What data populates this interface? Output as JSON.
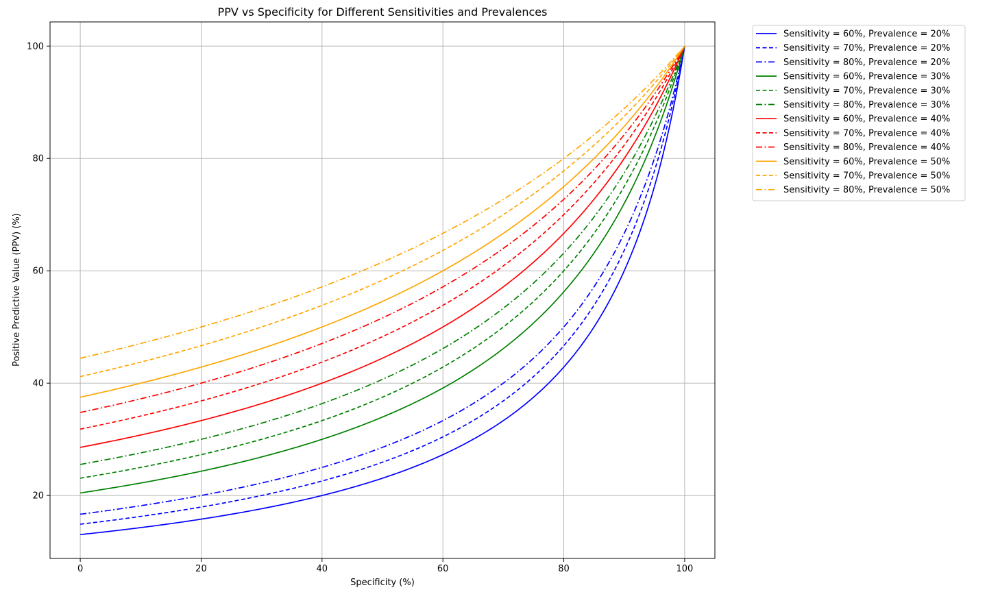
{
  "chart_data": {
    "type": "line",
    "title": "PPV vs Specificity for Different Sensitivities and Prevalences",
    "xlabel": "Specificity (%)",
    "ylabel": "Positive Predictive Value (PPV) (%)",
    "xlim": [
      -5,
      105
    ],
    "ylim": [
      8.8,
      104.3
    ],
    "xticks": [
      0,
      20,
      40,
      60,
      80,
      100
    ],
    "yticks": [
      20,
      40,
      60,
      80,
      100
    ],
    "grid": true,
    "legend_position": "outside-top-right",
    "x_range": [
      0,
      100
    ],
    "series": [
      {
        "name": "Sensitivity = 60%, Prevalence = 20%",
        "sensitivity": 60,
        "prevalence": 20,
        "color": "#0000ff",
        "dash": "solid"
      },
      {
        "name": "Sensitivity = 70%, Prevalence = 20%",
        "sensitivity": 70,
        "prevalence": 20,
        "color": "#0000ff",
        "dash": "dashed"
      },
      {
        "name": "Sensitivity = 80%, Prevalence = 20%",
        "sensitivity": 80,
        "prevalence": 20,
        "color": "#0000ff",
        "dash": "dashdot"
      },
      {
        "name": "Sensitivity = 60%, Prevalence = 30%",
        "sensitivity": 60,
        "prevalence": 30,
        "color": "#008000",
        "dash": "solid"
      },
      {
        "name": "Sensitivity = 70%, Prevalence = 30%",
        "sensitivity": 70,
        "prevalence": 30,
        "color": "#008000",
        "dash": "dashed"
      },
      {
        "name": "Sensitivity = 80%, Prevalence = 30%",
        "sensitivity": 80,
        "prevalence": 30,
        "color": "#008000",
        "dash": "dashdot"
      },
      {
        "name": "Sensitivity = 60%, Prevalence = 40%",
        "sensitivity": 60,
        "prevalence": 40,
        "color": "#ff0000",
        "dash": "solid"
      },
      {
        "name": "Sensitivity = 70%, Prevalence = 40%",
        "sensitivity": 70,
        "prevalence": 40,
        "color": "#ff0000",
        "dash": "dashed"
      },
      {
        "name": "Sensitivity = 80%, Prevalence = 40%",
        "sensitivity": 80,
        "prevalence": 40,
        "color": "#ff0000",
        "dash": "dashdot"
      },
      {
        "name": "Sensitivity = 60%, Prevalence = 50%",
        "sensitivity": 60,
        "prevalence": 50,
        "color": "#ffa500",
        "dash": "solid"
      },
      {
        "name": "Sensitivity = 70%, Prevalence = 50%",
        "sensitivity": 70,
        "prevalence": 50,
        "color": "#ffa500",
        "dash": "dashed"
      },
      {
        "name": "Sensitivity = 80%, Prevalence = 50%",
        "sensitivity": 80,
        "prevalence": 50,
        "color": "#ffa500",
        "dash": "dashdot"
      }
    ]
  }
}
